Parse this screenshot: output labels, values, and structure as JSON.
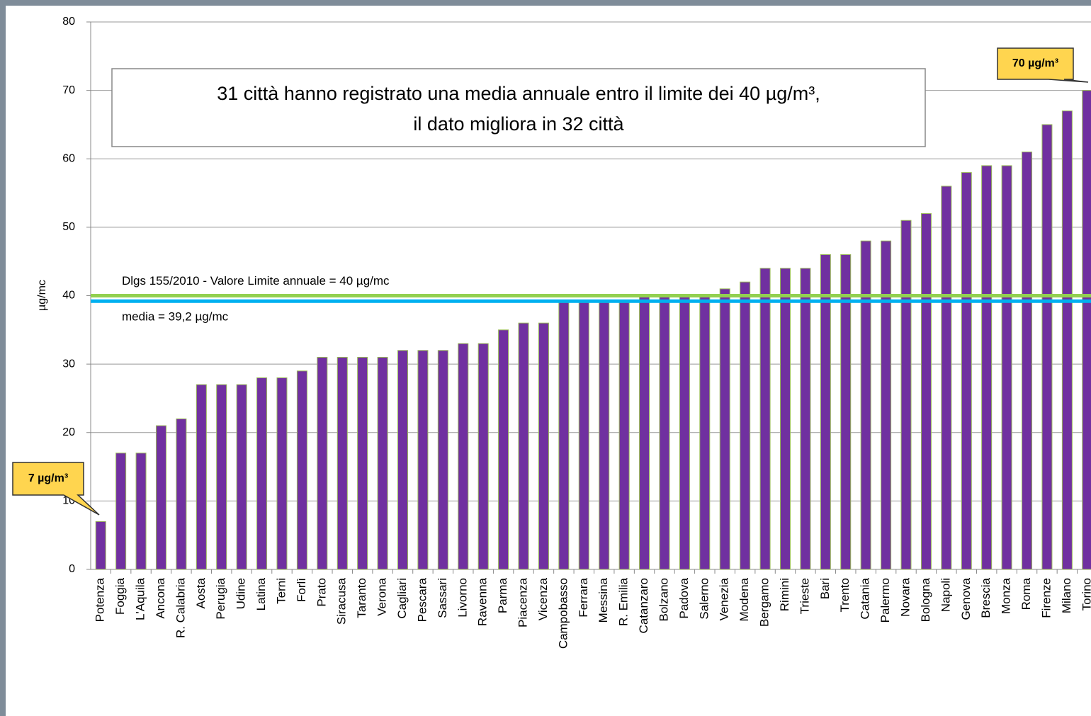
{
  "chart_data": {
    "type": "bar",
    "y_label": "µg/mc",
    "annotation": [
      "31 città hanno registrato una media annuale entro il limite dei 40 µg/m³,",
      "il dato migliora in 32 città"
    ],
    "callouts": [
      "7 µg/m³",
      "70 µg/m³"
    ],
    "reference_lines": [
      {
        "label": "Dlgs 155/2010  - Valore Limite annuale = 40 µg/mc",
        "value": 40,
        "color": "#92d050"
      },
      {
        "label": "media = 39,2 µg/mc",
        "value": 39.2,
        "color": "#00b0f0"
      }
    ],
    "categories": [
      "Potenza",
      "Foggia",
      "L'Aquila",
      "Ancona",
      "R. Calabria",
      "Aosta",
      "Perugia",
      "Udine",
      "Latina",
      "Terni",
      "Forlì",
      "Prato",
      "Siracusa",
      "Taranto",
      "Verona",
      "Cagliari",
      "Pescara",
      "Sassari",
      "Livorno",
      "Ravenna",
      "Parma",
      "Piacenza",
      "Vicenza",
      "Campobasso",
      "Ferrara",
      "Messina",
      "R. Emilia",
      "Catanzaro",
      "Bolzano",
      "Padova",
      "Salerno",
      "Venezia",
      "Modena",
      "Bergamo",
      "Rimini",
      "Trieste",
      "Bari",
      "Trento",
      "Catania",
      "Palermo",
      "Novara",
      "Bologna",
      "Napoli",
      "Genova",
      "Brescia",
      "Monza",
      "Roma",
      "Firenze",
      "Milano",
      "Torino"
    ],
    "values": [
      7,
      17,
      17,
      21,
      22,
      27,
      27,
      27,
      28,
      28,
      29,
      31,
      31,
      31,
      31,
      32,
      32,
      32,
      33,
      33,
      35,
      36,
      36,
      39,
      39,
      39,
      39,
      40,
      40,
      40,
      40,
      41,
      42,
      44,
      44,
      44,
      46,
      46,
      48,
      48,
      51,
      52,
      56,
      58,
      59,
      59,
      61,
      65,
      67,
      70
    ],
    "color": "#7030a0",
    "ylim": [
      0,
      80
    ],
    "yticks": [
      0,
      10,
      20,
      30,
      40,
      50,
      60,
      70,
      80
    ],
    "grid": true
  }
}
